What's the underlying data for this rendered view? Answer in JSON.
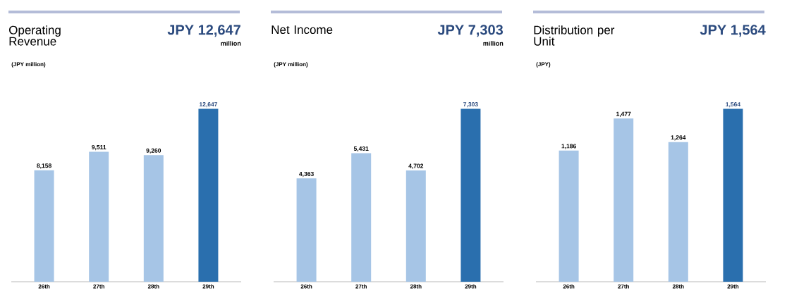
{
  "chart_data": [
    {
      "type": "bar",
      "title": "Operating Revenue",
      "ylabel": "(JPY million)",
      "annotations": [
        "JPY 12,647",
        "million"
      ],
      "categories": [
        "26th",
        "27th",
        "28th",
        "29th"
      ],
      "values": [
        8158,
        9511,
        9260,
        12647
      ],
      "value_labels": [
        "8,158",
        "9,511",
        "9,260",
        "12,647"
      ],
      "colors": [
        "#a6c5e6",
        "#a6c5e6",
        "#a6c5e6",
        "#2a6fae"
      ]
    },
    {
      "type": "bar",
      "title": "Net Income",
      "ylabel": "(JPY million)",
      "annotations": [
        "JPY 7,303",
        "million"
      ],
      "categories": [
        "26th",
        "27th",
        "28th",
        "29th"
      ],
      "values": [
        4363,
        5431,
        4702,
        7303
      ],
      "value_labels": [
        "4,363",
        "5,431",
        "4,702",
        "7,303"
      ],
      "colors": [
        "#a6c5e6",
        "#a6c5e6",
        "#a6c5e6",
        "#2a6fae"
      ]
    },
    {
      "type": "bar",
      "title": "Distribution per Unit",
      "ylabel": "(JPY)",
      "annotations": [
        "JPY 1,564"
      ],
      "categories": [
        "26th",
        "27th",
        "28th",
        "29th"
      ],
      "values": [
        1186,
        1477,
        1264,
        1564
      ],
      "value_labels": [
        "1,186",
        "1,477",
        "1,264",
        "1,564"
      ],
      "colors": [
        "#a6c5e6",
        "#a6c5e6",
        "#a6c5e6",
        "#2a6fae"
      ]
    }
  ]
}
